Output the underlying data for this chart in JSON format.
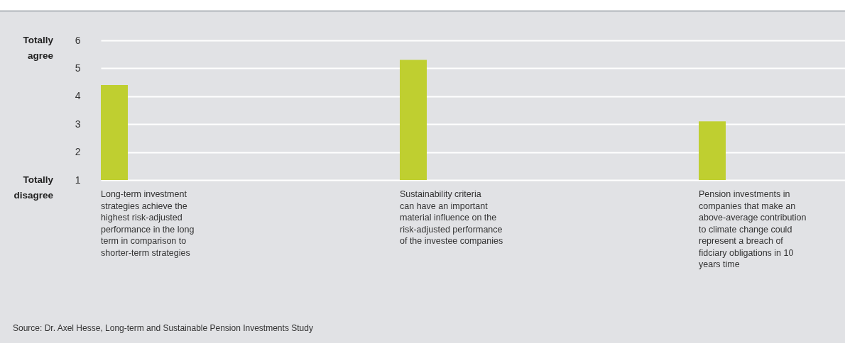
{
  "chart_data": {
    "type": "bar",
    "categories": [
      "Long-term investment strategies achieve the highest risk-adjusted performance in the long term in comparison to shorter-term strategies",
      "Sustainability criteria can have an important material influence on the risk-adjusted performance of the investee companies",
      "Pension investments in companies that make an above-average contribution to climate change could represent a breach of fidciary obligations in 10 years time"
    ],
    "values": [
      4.4,
      5.3,
      3.1
    ],
    "color": "#bfcf30",
    "ylim": [
      1,
      6
    ],
    "yticks": [
      1,
      2,
      3,
      4,
      5,
      6
    ],
    "grid": "y",
    "annotations": [
      "Totally agree",
      "Totally disagree",
      "Source: Dr. Axel Hesse, Long-term and Sustainable Pension Investments Study"
    ]
  }
}
